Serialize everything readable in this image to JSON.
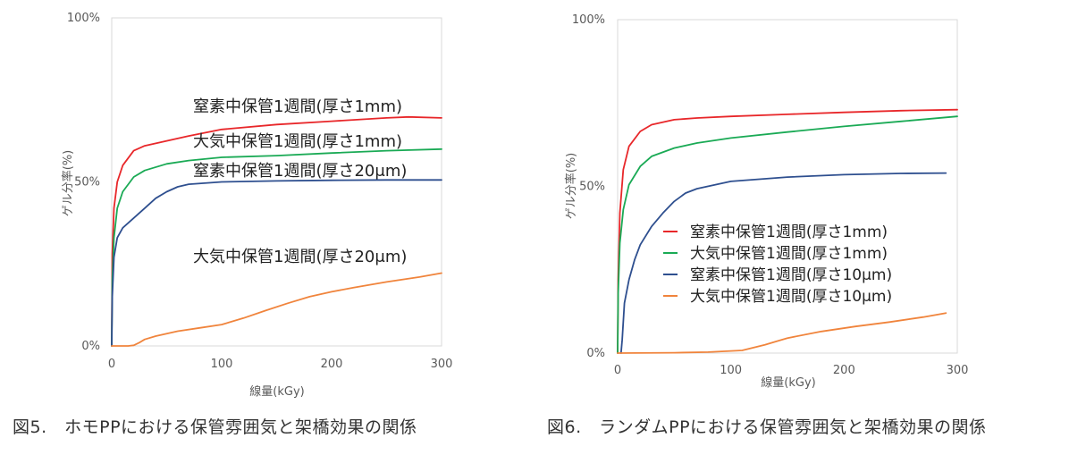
{
  "charts": [
    {
      "caption": "図5.　ホモPPにおける保管雰囲気と架橋効果の関係",
      "chart_data": {
        "type": "line",
        "xlabel": "線量(kGy)",
        "ylabel": "ゲル分率(%)",
        "xlim": [
          0,
          300
        ],
        "ylim": [
          0,
          100
        ],
        "xticks": [
          "0",
          "100",
          "200",
          "300"
        ],
        "yticks": [
          "0%",
          "50%",
          "100%"
        ],
        "grid": false,
        "legend": "inline-labels",
        "series": [
          {
            "name": "窒素中保管1週間(厚さ1mm)",
            "color": "#e8272a",
            "points": [
              [
                0,
                0
              ],
              [
                0.5,
                28
              ],
              [
                2,
                42
              ],
              [
                5,
                50
              ],
              [
                10,
                55
              ],
              [
                20,
                59.5
              ],
              [
                30,
                61
              ],
              [
                50,
                62.5
              ],
              [
                70,
                64
              ],
              [
                100,
                66
              ],
              [
                150,
                67.5
              ],
              [
                200,
                68.5
              ],
              [
                250,
                69.5
              ],
              [
                270,
                69.8
              ],
              [
                300,
                69.5
              ]
            ]
          },
          {
            "name": "大気中保管1週間(厚さ1mm)",
            "color": "#1aaa55",
            "points": [
              [
                0,
                0
              ],
              [
                0.5,
                20
              ],
              [
                2,
                33
              ],
              [
                5,
                42
              ],
              [
                10,
                47
              ],
              [
                20,
                51.5
              ],
              [
                30,
                53.5
              ],
              [
                50,
                55.5
              ],
              [
                70,
                56.5
              ],
              [
                100,
                57.5
              ],
              [
                150,
                58
              ],
              [
                200,
                58.8
              ],
              [
                250,
                59.5
              ],
              [
                300,
                60
              ]
            ]
          },
          {
            "name": "窒素中保管1週間(厚さ20μm)",
            "color": "#2e4f8f",
            "points": [
              [
                0,
                0
              ],
              [
                0.5,
                15
              ],
              [
                2,
                27
              ],
              [
                5,
                33
              ],
              [
                10,
                36
              ],
              [
                20,
                39
              ],
              [
                30,
                42
              ],
              [
                40,
                45
              ],
              [
                50,
                47
              ],
              [
                60,
                48.5
              ],
              [
                70,
                49.3
              ],
              [
                100,
                50
              ],
              [
                150,
                50.3
              ],
              [
                200,
                50.5
              ],
              [
                250,
                50.6
              ],
              [
                300,
                50.6
              ]
            ]
          },
          {
            "name": "大気中保管1週間(厚さ20μm)",
            "color": "#f0843c",
            "points": [
              [
                0,
                0
              ],
              [
                5,
                0
              ],
              [
                15,
                0
              ],
              [
                20,
                0.2
              ],
              [
                25,
                1
              ],
              [
                30,
                2
              ],
              [
                40,
                3
              ],
              [
                60,
                4.5
              ],
              [
                80,
                5.5
              ],
              [
                100,
                6.5
              ],
              [
                120,
                8.5
              ],
              [
                140,
                10.8
              ],
              [
                160,
                13
              ],
              [
                180,
                15
              ],
              [
                200,
                16.5
              ],
              [
                220,
                17.8
              ],
              [
                250,
                19.5
              ],
              [
                280,
                21
              ],
              [
                300,
                22.2
              ]
            ]
          }
        ],
        "annotations": [
          "窒素中保管1週間(厚さ1mm)",
          "大気中保管1週間(厚さ1mm)",
          "窒素中保管1週間(厚さ20μm)",
          "大気中保管1週間(厚さ20μm)"
        ]
      }
    },
    {
      "caption": "図6.　ランダムPPにおける保管雰囲気と架橋効果の関係",
      "chart_data": {
        "type": "line",
        "xlabel": "線量(kGy)",
        "ylabel": "ゲル分率(%)",
        "xlim": [
          0,
          300
        ],
        "ylim": [
          0,
          100
        ],
        "xticks": [
          "0",
          "100",
          "200",
          "300"
        ],
        "yticks": [
          "0%",
          "50%",
          "100%"
        ],
        "grid": false,
        "legend": "center-right",
        "series": [
          {
            "name": "窒素中保管1週間(厚さ1mm)",
            "color": "#e8272a",
            "points": [
              [
                0,
                0
              ],
              [
                0.5,
                22
              ],
              [
                2,
                42
              ],
              [
                5,
                55
              ],
              [
                10,
                62
              ],
              [
                20,
                66.5
              ],
              [
                30,
                68.5
              ],
              [
                50,
                70
              ],
              [
                70,
                70.5
              ],
              [
                100,
                71
              ],
              [
                150,
                71.6
              ],
              [
                200,
                72.2
              ],
              [
                250,
                72.7
              ],
              [
                300,
                73
              ]
            ]
          },
          {
            "name": "大気中保管1週間(厚さ1mm)",
            "color": "#1aaa55",
            "points": [
              [
                0,
                0
              ],
              [
                0.5,
                18
              ],
              [
                2,
                33
              ],
              [
                5,
                43
              ],
              [
                10,
                50.5
              ],
              [
                20,
                56
              ],
              [
                30,
                59
              ],
              [
                50,
                61.5
              ],
              [
                70,
                63
              ],
              [
                100,
                64.5
              ],
              [
                150,
                66.3
              ],
              [
                200,
                68
              ],
              [
                250,
                69.5
              ],
              [
                300,
                71
              ]
            ]
          },
          {
            "name": "窒素中保管1週間(厚さ10μm)",
            "color": "#2e4f8f",
            "points": [
              [
                3,
                0
              ],
              [
                4,
                4
              ],
              [
                6,
                15
              ],
              [
                10,
                22
              ],
              [
                15,
                28
              ],
              [
                20,
                32.5
              ],
              [
                30,
                38
              ],
              [
                40,
                42
              ],
              [
                50,
                45.5
              ],
              [
                60,
                48
              ],
              [
                70,
                49.3
              ],
              [
                100,
                51.5
              ],
              [
                150,
                52.8
              ],
              [
                200,
                53.5
              ],
              [
                250,
                53.9
              ],
              [
                290,
                54
              ]
            ]
          },
          {
            "name": "大気中保管1週間(厚さ10μm)",
            "color": "#f0843c",
            "points": [
              [
                0,
                0
              ],
              [
                50,
                0.1
              ],
              [
                80,
                0.3
              ],
              [
                110,
                0.8
              ],
              [
                130,
                2.5
              ],
              [
                150,
                4.5
              ],
              [
                180,
                6.5
              ],
              [
                210,
                8
              ],
              [
                240,
                9.3
              ],
              [
                270,
                10.8
              ],
              [
                290,
                12
              ]
            ]
          }
        ]
      }
    }
  ]
}
